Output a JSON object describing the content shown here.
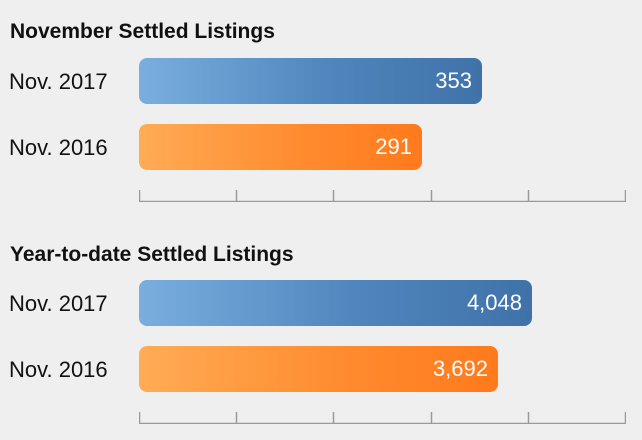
{
  "chart_data": [
    {
      "type": "bar",
      "orientation": "horizontal",
      "title": "November Settled Listings",
      "categories": [
        "Nov. 2017",
        "Nov. 2016"
      ],
      "values": [
        353,
        291
      ],
      "value_labels": [
        "353",
        "291"
      ],
      "xlim": [
        0,
        500
      ],
      "ticks": 6,
      "colors": [
        "#4f86bd",
        "#ff8c30"
      ]
    },
    {
      "type": "bar",
      "orientation": "horizontal",
      "title": "Year-to-date Settled Listings",
      "categories": [
        "Nov. 2017",
        "Nov. 2016"
      ],
      "values": [
        4048,
        3692
      ],
      "value_labels": [
        "4,048",
        "3,692"
      ],
      "xlim": [
        0,
        5000
      ],
      "ticks": 6,
      "colors": [
        "#4f86bd",
        "#ff8c30"
      ]
    }
  ]
}
